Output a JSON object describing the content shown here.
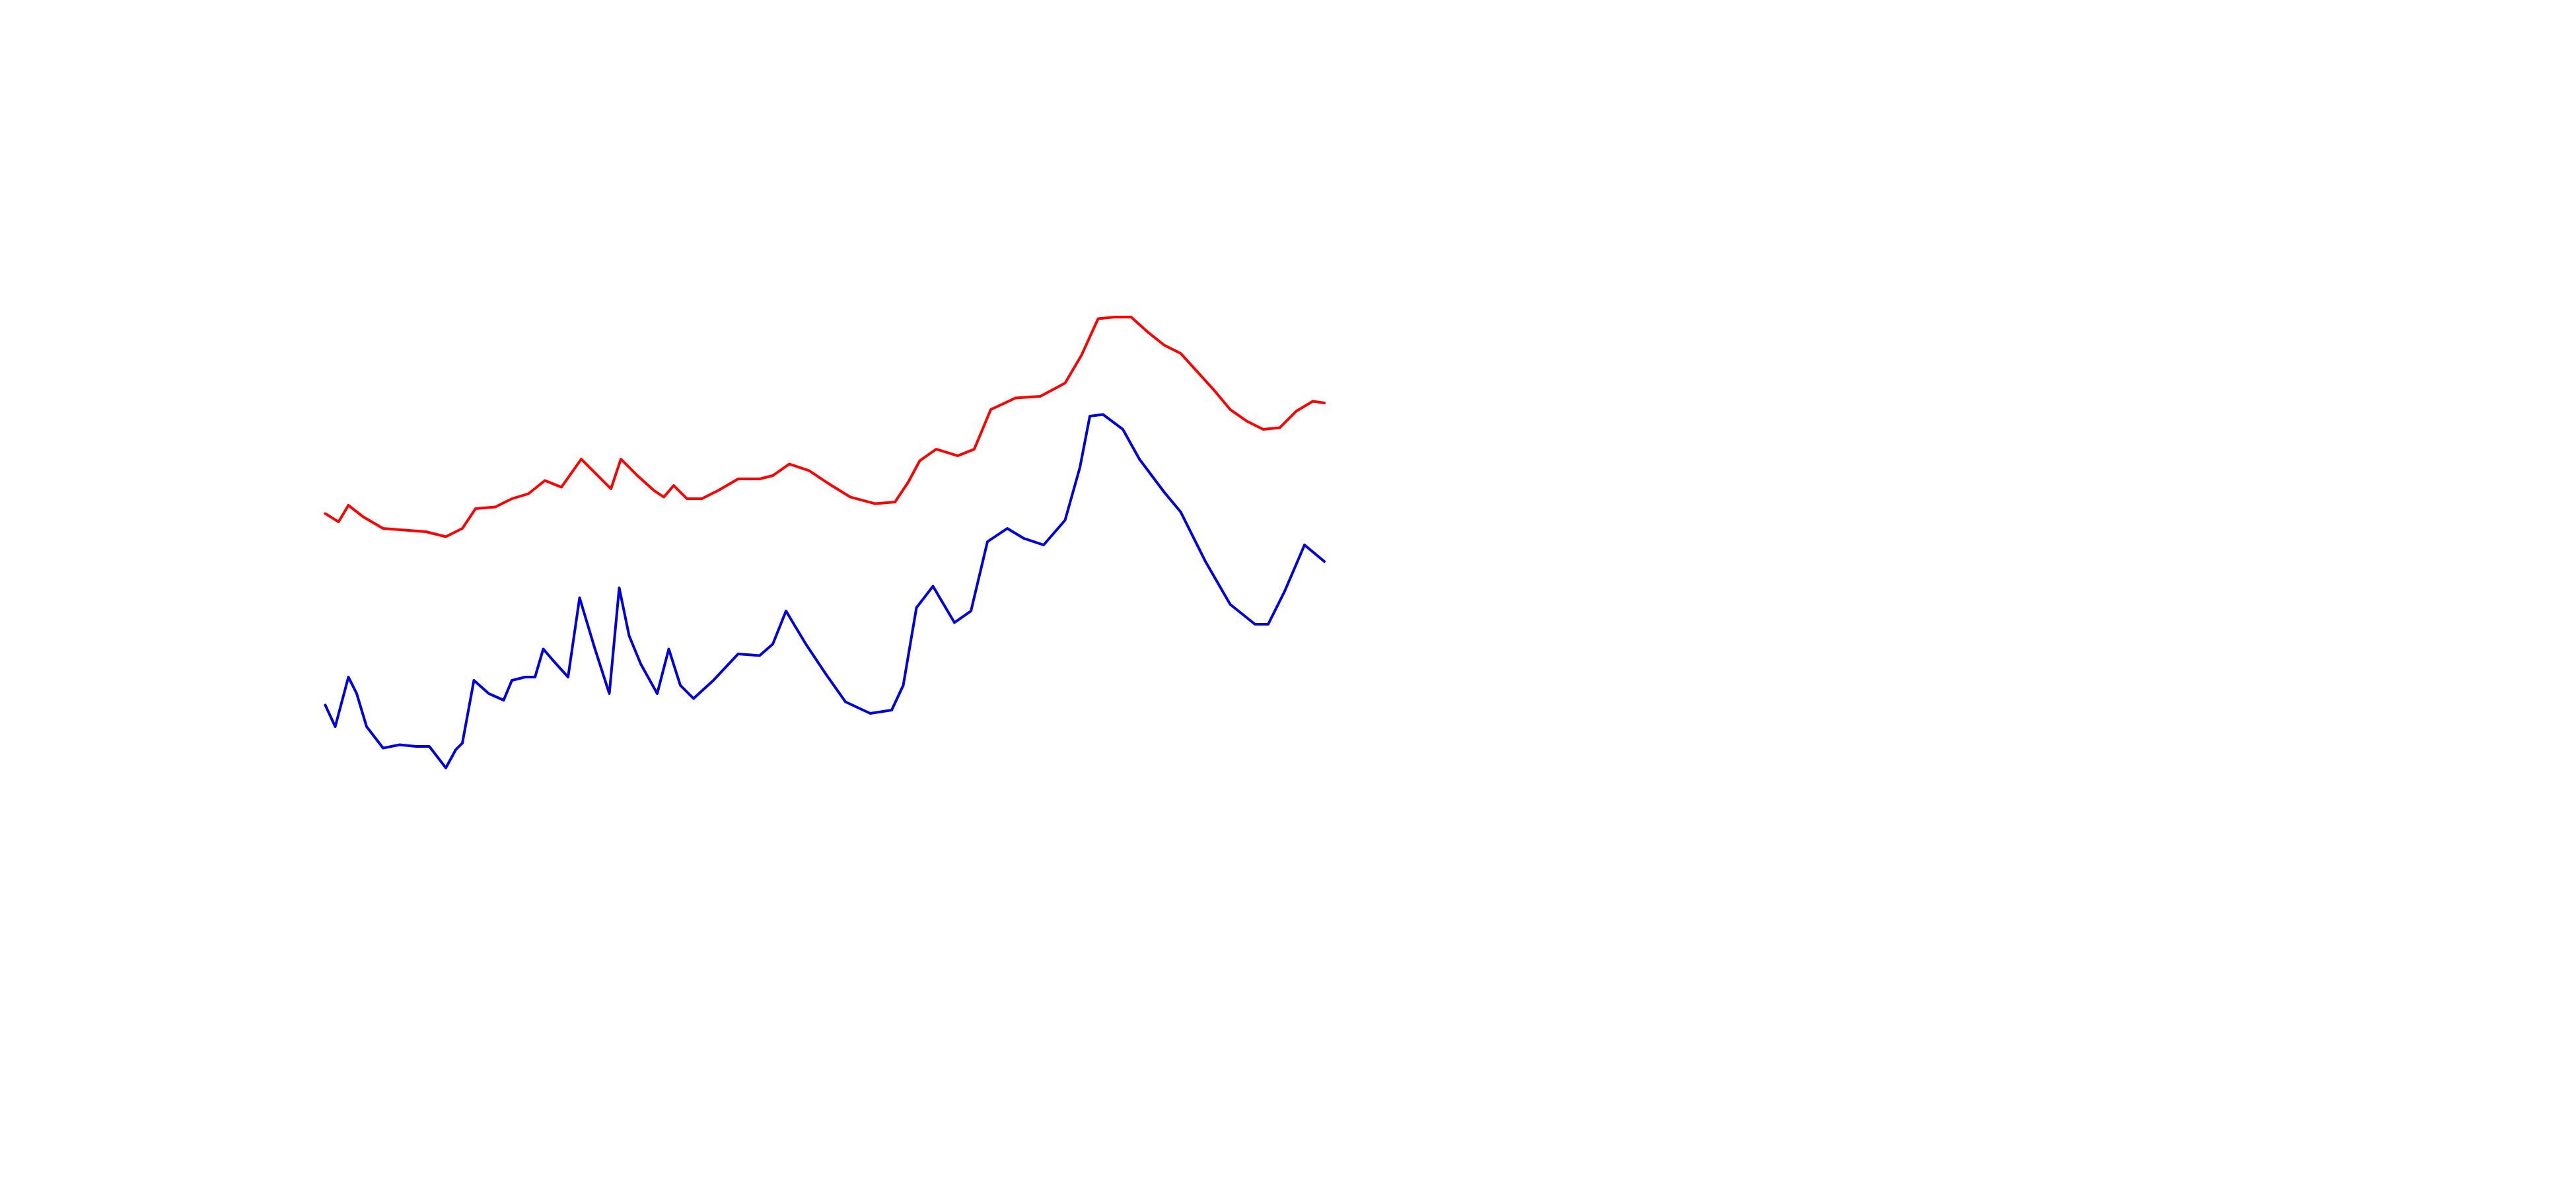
{
  "chart_data": {
    "type": "line",
    "xlim": [
      0,
      605
    ],
    "ylim": [
      0,
      290
    ],
    "series": [
      {
        "color": "#ff0000",
        "x": [
          0,
          8,
          14,
          23,
          35,
          48,
          61,
          73,
          83,
          91,
          103,
          113,
          123,
          133,
          143,
          155,
          165,
          173,
          179,
          189,
          199,
          205,
          211,
          219,
          228,
          238,
          250,
          263,
          271,
          281,
          293,
          305,
          318,
          333,
          345,
          353,
          360,
          370,
          383,
          393,
          403,
          418,
          433,
          448,
          458,
          468,
          478,
          488,
          498,
          508,
          518,
          528,
          538,
          548,
          558,
          568,
          578,
          588,
          598,
          605
        ],
        "values": [
          159,
          154,
          164,
          157,
          150,
          149,
          148,
          145,
          150,
          162,
          163,
          168,
          171,
          179,
          175,
          192,
          182,
          174,
          192,
          182,
          173,
          169,
          176,
          168,
          168,
          173,
          180,
          180,
          182,
          189,
          185,
          177,
          169,
          165,
          166,
          178,
          191,
          198,
          194,
          198,
          222,
          229,
          230,
          238,
          255,
          277,
          278,
          278,
          269,
          261,
          256,
          245,
          234,
          222,
          215,
          210,
          211,
          221,
          227,
          226
        ]
      },
      {
        "color": "#0000dd",
        "x": [
          0,
          6,
          10,
          14,
          19,
          25,
          35,
          45,
          55,
          63,
          73,
          79,
          83,
          90,
          99,
          108,
          113,
          121,
          127,
          132,
          138,
          147,
          154,
          163,
          172,
          178,
          184,
          191,
          201,
          208,
          215,
          223,
          235,
          250,
          263,
          271,
          279,
          291,
          303,
          315,
          330,
          343,
          350,
          358,
          368,
          381,
          391,
          401,
          413,
          423,
          435,
          448,
          457,
          463,
          471,
          483,
          493,
          508,
          518,
          533,
          548,
          563,
          571,
          581,
          593,
          605
        ],
        "values": [
          43,
          30,
          45,
          60,
          50,
          30,
          17,
          19,
          18,
          18,
          5,
          16,
          20,
          58,
          50,
          46,
          58,
          60,
          60,
          77,
          70,
          60,
          108,
          78,
          50,
          114,
          85,
          68,
          50,
          77,
          55,
          47,
          58,
          74,
          73,
          80,
          100,
          80,
          62,
          45,
          38,
          40,
          55,
          102,
          115,
          93,
          100,
          142,
          150,
          144,
          140,
          155,
          187,
          218,
          219,
          210,
          192,
          172,
          160,
          130,
          104,
          92,
          92,
          112,
          140,
          130
        ]
      }
    ]
  }
}
